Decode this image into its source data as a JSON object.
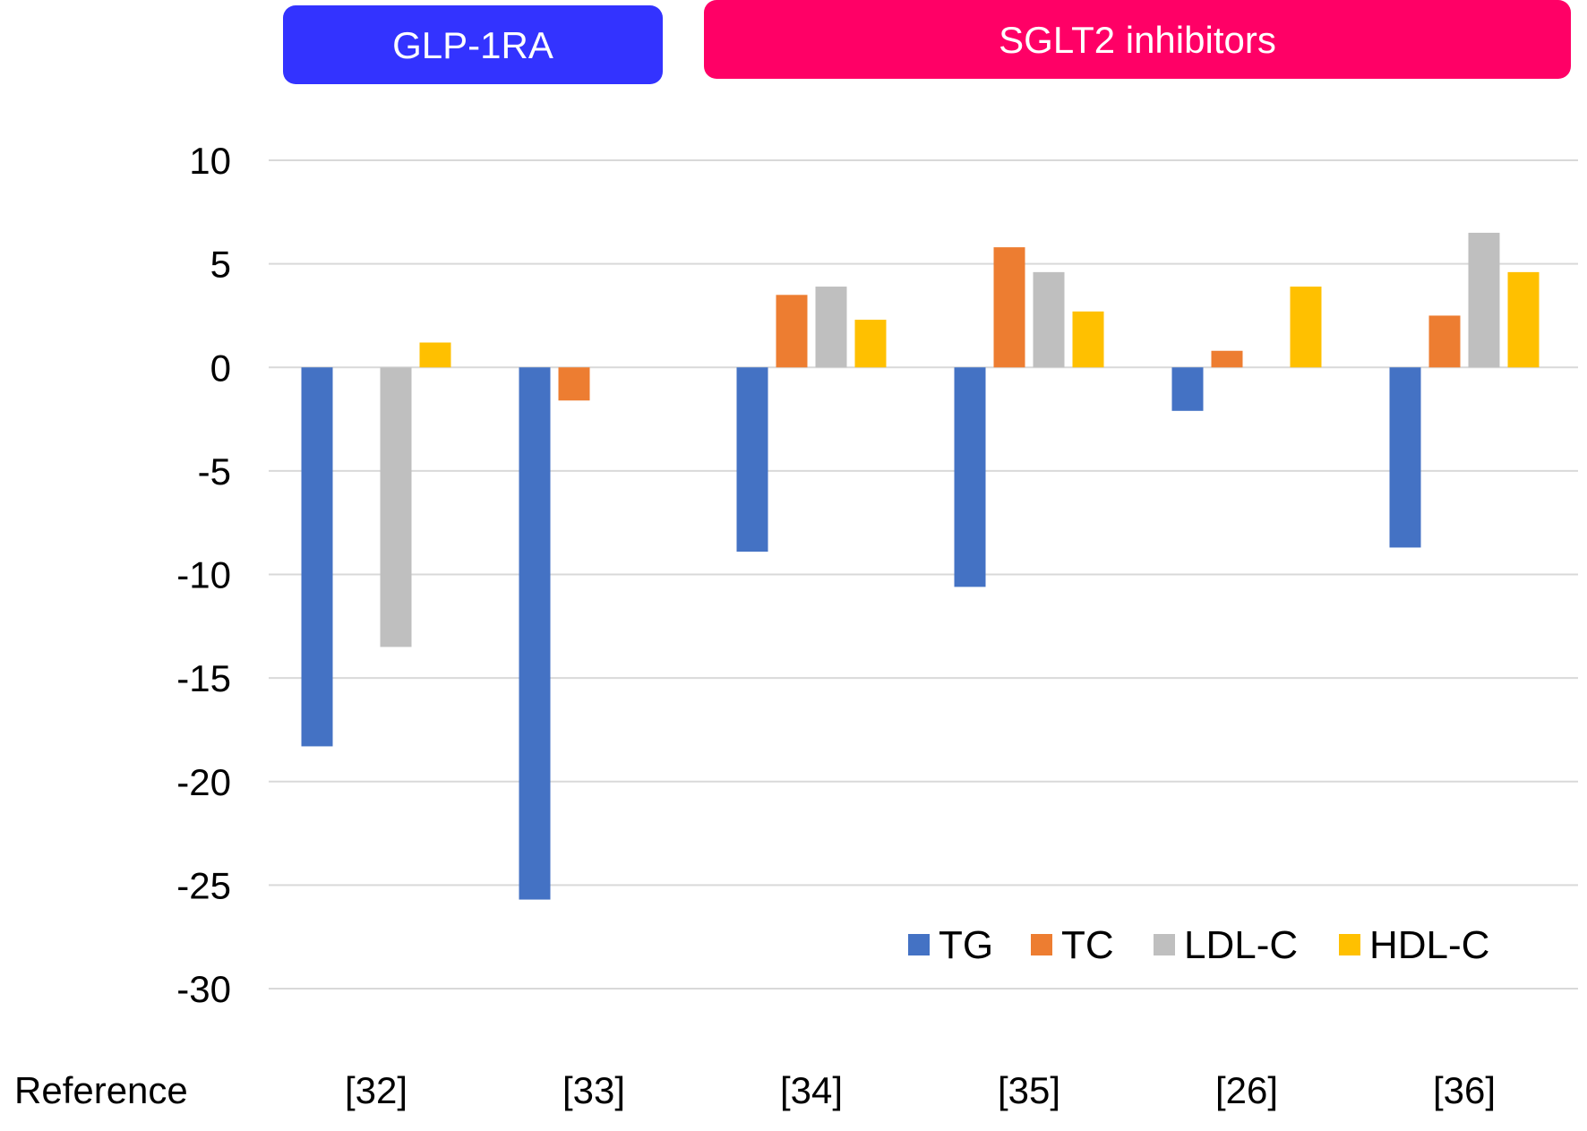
{
  "groups": [
    {
      "label": "GLP-1RA",
      "color": "#3333FF",
      "categories": [
        "[32]",
        "[33]"
      ]
    },
    {
      "label": "SGLT2 inhibitors",
      "color": "#FF0066",
      "categories": [
        "[34]",
        "[35]",
        "[26]",
        "[36]"
      ]
    }
  ],
  "chart_data": {
    "type": "bar",
    "title": "",
    "xlabel": "Reference",
    "ylabel": "",
    "ylim": [
      -30,
      10
    ],
    "yticks": [
      10,
      5,
      0,
      -5,
      -10,
      -15,
      -20,
      -25,
      -30
    ],
    "grid": true,
    "legend_position": "bottom-right",
    "categories": [
      "[32]",
      "[33]",
      "[34]",
      "[35]",
      "[26]",
      "[36]"
    ],
    "series": [
      {
        "name": "TG",
        "color": "#4472C4",
        "values": [
          -18.3,
          -25.7,
          -8.9,
          -10.6,
          -2.1,
          -8.7
        ]
      },
      {
        "name": "TC",
        "color": "#ED7D31",
        "values": [
          null,
          -1.6,
          3.5,
          5.8,
          0.8,
          2.5
        ]
      },
      {
        "name": "LDL-C",
        "color": "#BFBFBF",
        "values": [
          -13.5,
          null,
          3.9,
          4.6,
          null,
          6.5
        ]
      },
      {
        "name": "HDL-C",
        "color": "#FFC000",
        "values": [
          1.2,
          null,
          2.3,
          2.7,
          3.9,
          4.6
        ]
      }
    ]
  }
}
